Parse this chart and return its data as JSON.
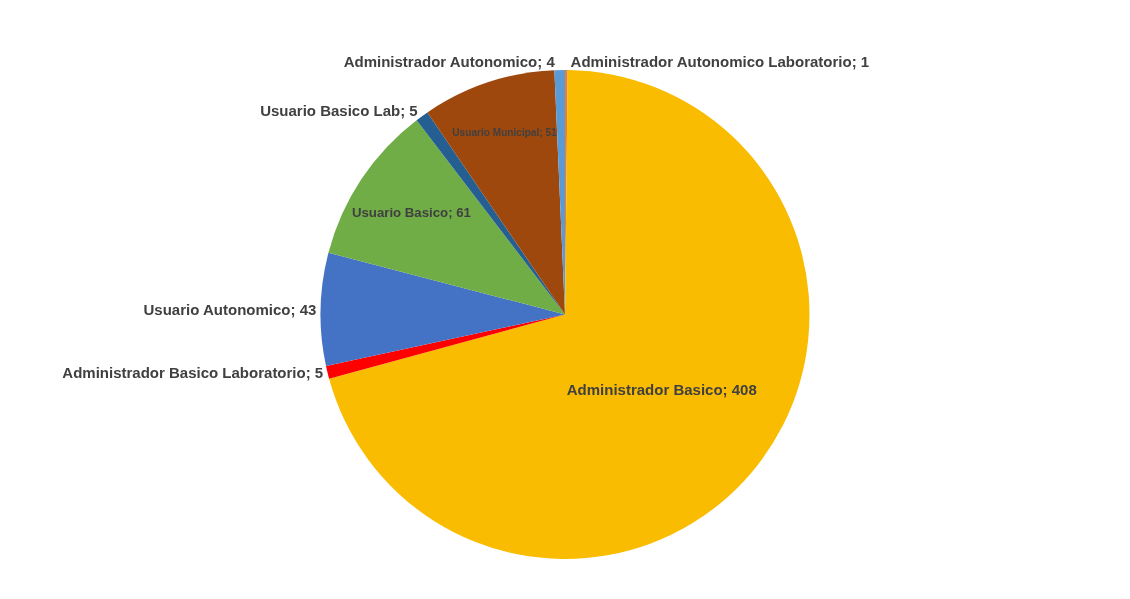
{
  "chart_data": {
    "type": "pie",
    "categories": [
      "Administrador Autonomico Laboratorio; 1",
      "Administrador Basico; 408",
      "Administrador Basico Laboratorio; 5",
      "Usuario Autonomico; 43",
      "Usuario Basico; 61",
      "Usuario Basico Lab; 5",
      "Usuario Municipal; 51",
      "Administrador Autonomico; 4"
    ],
    "values": [
      1,
      408,
      5,
      43,
      61,
      5,
      51,
      4
    ],
    "colors": [
      "#ed7d31",
      "#f9bc00",
      "#ff0000",
      "#4472c4",
      "#70ad47",
      "#255e91",
      "#9e480e",
      "#5b9bd5"
    ],
    "legend": false
  }
}
